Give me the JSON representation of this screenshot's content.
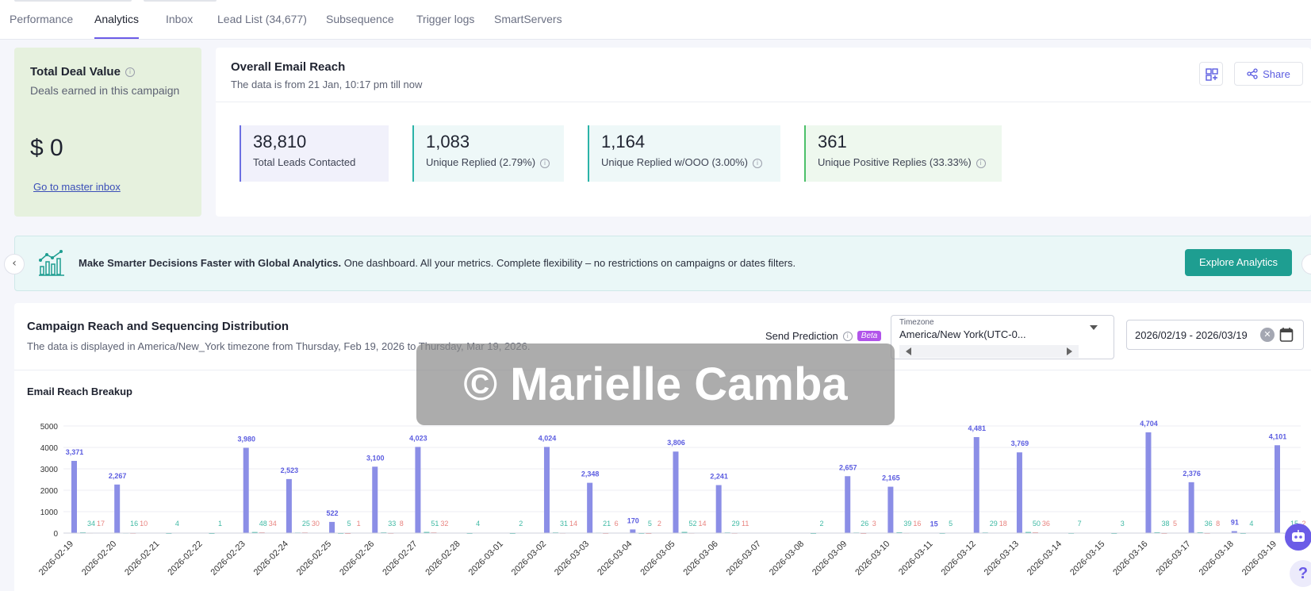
{
  "tabs": [
    {
      "label": "Performance",
      "active": false
    },
    {
      "label": "Analytics",
      "active": true
    },
    {
      "label": "Inbox",
      "active": false
    },
    {
      "label": "Lead List (34,677)",
      "active": false
    },
    {
      "label": "Subsequence",
      "active": false
    },
    {
      "label": "Trigger logs",
      "active": false
    },
    {
      "label": "SmartServers",
      "active": false
    }
  ],
  "deal": {
    "title": "Total Deal Value",
    "subtitle": "Deals earned in this campaign",
    "value": "$ 0",
    "link": "Go to master inbox"
  },
  "reach": {
    "title": "Overall Email Reach",
    "subtitle": "The data is from 21 Jan, 10:17 pm till now",
    "share_label": "Share",
    "stats": [
      {
        "value": "38,810",
        "label": "Total Leads Contacted",
        "info": false,
        "accent": "#6b6fe2",
        "bg": "#f1f1fb"
      },
      {
        "value": "1,083",
        "label": "Unique Replied (2.79%)",
        "info": true,
        "accent": "#2bb3a8",
        "bg": "#eef8f8"
      },
      {
        "value": "1,164",
        "label": "Unique Replied w/OOO (3.00%)",
        "info": true,
        "accent": "#2bb3a8",
        "bg": "#eef8f8"
      },
      {
        "value": "361",
        "label": "Unique Positive Replies (33.33%)",
        "info": true,
        "accent": "#4cc06a",
        "bg": "#eef8ee"
      }
    ]
  },
  "banner": {
    "bold": "Make Smarter Decisions Faster with Global Analytics.",
    "text": " One dashboard. All your metrics. Complete flexibility – no restrictions on campaigns or dates filters.",
    "button": "Explore Analytics"
  },
  "campaign": {
    "title": "Campaign Reach and Sequencing Distribution",
    "subtitle": "The data is displayed in America/New_York timezone from Thursday, Feb 19, 2026 to Thursday, Mar 19, 2026.",
    "send_prediction": "Send Prediction",
    "beta": "Beta",
    "timezone_label": "Timezone",
    "timezone_value": "America/New York(UTC-0...",
    "date_range": "2026/02/19 - 2026/03/19",
    "breakup_title": "Email Reach Breakup"
  },
  "watermark": "© Marielle Camba",
  "colors": {
    "accent": "#6b5ce7",
    "bar_primary": "#8b8ee6",
    "bar_green": "#3fb9a4",
    "bar_red": "#e8837f",
    "teal_button": "#1e9e91"
  },
  "chart_data": {
    "type": "bar",
    "title": "Email Reach Breakup",
    "ylim": [
      0,
      5000
    ],
    "yticks": [
      0,
      1000,
      2000,
      3000,
      4000,
      5000
    ],
    "categories": [
      "2026-02-19",
      "2026-02-20",
      "2026-02-21",
      "2026-02-22",
      "2026-02-23",
      "2026-02-24",
      "2026-02-25",
      "2026-02-26",
      "2026-02-27",
      "2026-02-28",
      "2026-03-01",
      "2026-03-02",
      "2026-03-03",
      "2026-03-04",
      "2026-03-05",
      "2026-03-06",
      "2026-03-07",
      "2026-03-08",
      "2026-03-09",
      "2026-03-10",
      "2026-03-11",
      "2026-03-12",
      "2026-03-13",
      "2026-03-14",
      "2026-03-15",
      "2026-03-16",
      "2026-03-17",
      "2026-03-18",
      "2026-03-19"
    ],
    "series": [
      {
        "values": [
          3371,
          2267,
          0,
          0,
          3980,
          2523,
          522,
          3100,
          4023,
          0,
          0,
          4024,
          2348,
          170,
          3806,
          2241,
          0,
          0,
          2657,
          2165,
          15,
          4481,
          3769,
          0,
          0,
          4704,
          2376,
          91,
          4101
        ],
        "color": "#8b8ee6"
      },
      {
        "values": [
          34,
          16,
          4,
          1,
          48,
          25,
          5,
          33,
          51,
          4,
          2,
          31,
          21,
          5,
          52,
          29,
          0,
          2,
          26,
          39,
          5,
          29,
          50,
          7,
          3,
          38,
          36,
          4,
          15
        ],
        "color": "#3fb9a4"
      },
      {
        "values": [
          17,
          10,
          0,
          0,
          34,
          30,
          1,
          8,
          32,
          0,
          0,
          14,
          6,
          2,
          14,
          11,
          0,
          0,
          3,
          16,
          0,
          18,
          36,
          0,
          0,
          5,
          8,
          0,
          2
        ],
        "color": "#e8837f"
      }
    ],
    "grid": true
  }
}
